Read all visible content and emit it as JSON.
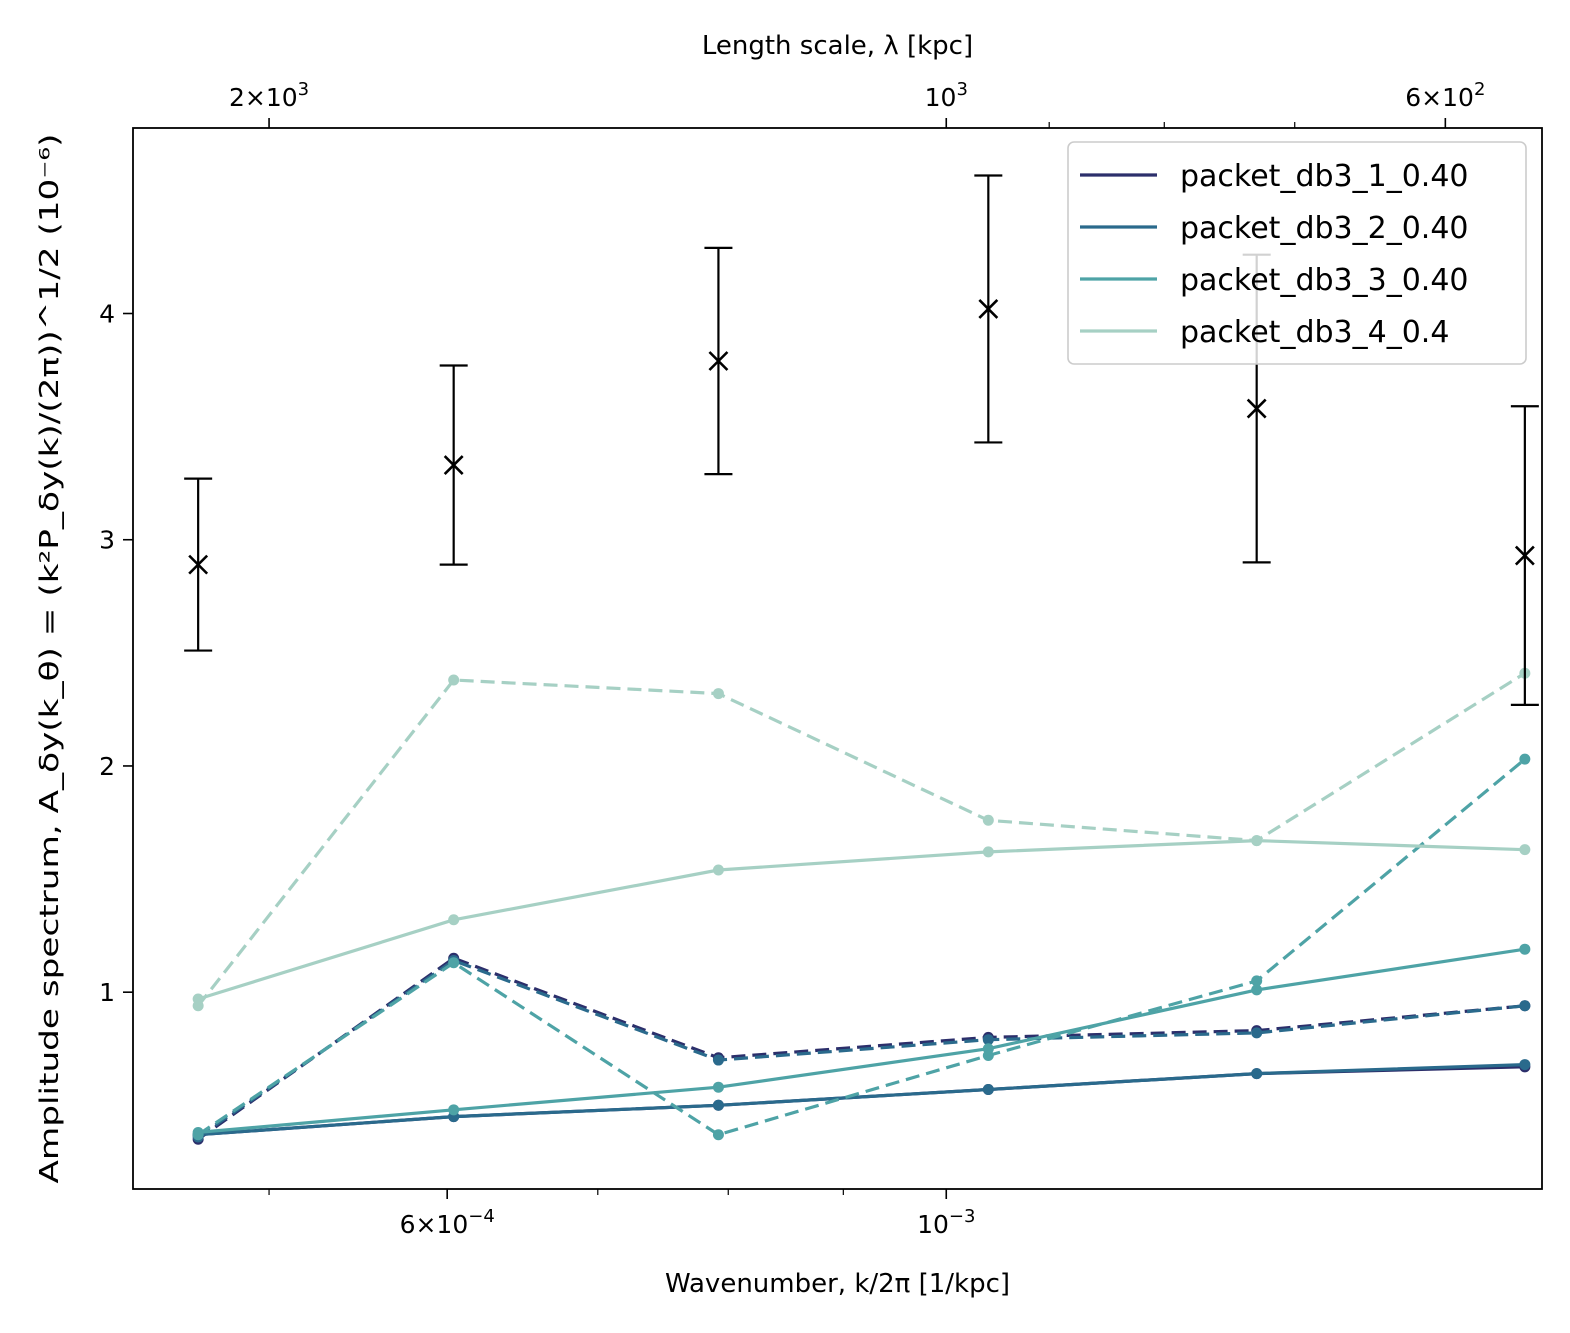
{
  "chart_data": {
    "type": "line",
    "xscale": "log",
    "xlabel": "Wavenumber, k/2π [1/kpc]",
    "ylabel": "Amplitude spectrum, A_δy(k_θ) = (k²P_δy(k)/(2π))^1/2 (10⁻⁶)",
    "top_xlabel": "Length scale, λ [kpc]",
    "xlim": [
      0.000435,
      0.00184
    ],
    "ylim": [
      0.13,
      4.82
    ],
    "grid": false,
    "legend_position": "top-right",
    "x": [
      0.000465,
      0.000604,
      0.000792,
      0.001044,
      0.001374,
      0.001808
    ],
    "x_ticks": [
      {
        "value": 0.0006,
        "base": "6×10",
        "exp": "−4"
      },
      {
        "value": 0.001,
        "base": "10",
        "exp": "−3"
      }
    ],
    "x_minor_ticks": [
      0.0005,
      0.0007,
      0.0008,
      0.0009
    ],
    "top_x_ticks": [
      {
        "lambda": 2000,
        "base": "2×10",
        "exp": "3"
      },
      {
        "lambda": 1000,
        "base": "10",
        "exp": "3"
      },
      {
        "lambda": 600,
        "base": "6×10",
        "exp": "2"
      }
    ],
    "top_x_minor_ticks": [
      900,
      800,
      700
    ],
    "y_ticks": [
      1,
      2,
      3,
      4
    ],
    "y_tick_labels": [
      "1",
      "2",
      "3",
      "4"
    ],
    "observed": {
      "marker": "x",
      "color": "#000000",
      "values": [
        2.89,
        3.33,
        3.79,
        4.02,
        3.58,
        2.93
      ],
      "err_low": [
        2.51,
        2.89,
        3.29,
        3.43,
        2.9,
        2.27
      ],
      "err_high": [
        3.27,
        3.77,
        4.29,
        4.61,
        4.26,
        3.59
      ]
    },
    "series": [
      {
        "name": "packet_db3_1_0.40",
        "color": "#2c2f6b",
        "solid": [
          0.37,
          0.45,
          0.5,
          0.57,
          0.64,
          0.67
        ],
        "dashed": [
          0.35,
          1.15,
          0.71,
          0.8,
          0.83,
          0.94
        ]
      },
      {
        "name": "packet_db3_2_0.40",
        "color": "#2a6a8c",
        "solid": [
          0.37,
          0.45,
          0.5,
          0.57,
          0.64,
          0.68
        ],
        "dashed": [
          0.36,
          1.14,
          0.7,
          0.79,
          0.82,
          0.94
        ]
      },
      {
        "name": "packet_db3_3_0.40",
        "color": "#4ea3a6",
        "solid": [
          0.38,
          0.48,
          0.58,
          0.75,
          1.01,
          1.19
        ],
        "dashed": [
          0.37,
          1.13,
          0.37,
          0.72,
          1.05,
          2.03
        ]
      },
      {
        "name": "packet_db3_4_0.4",
        "color": "#a6d0c4",
        "solid": [
          0.97,
          1.32,
          1.54,
          1.62,
          1.67,
          1.63
        ],
        "dashed": [
          0.94,
          2.38,
          2.32,
          1.76,
          1.67,
          2.41
        ]
      }
    ]
  }
}
